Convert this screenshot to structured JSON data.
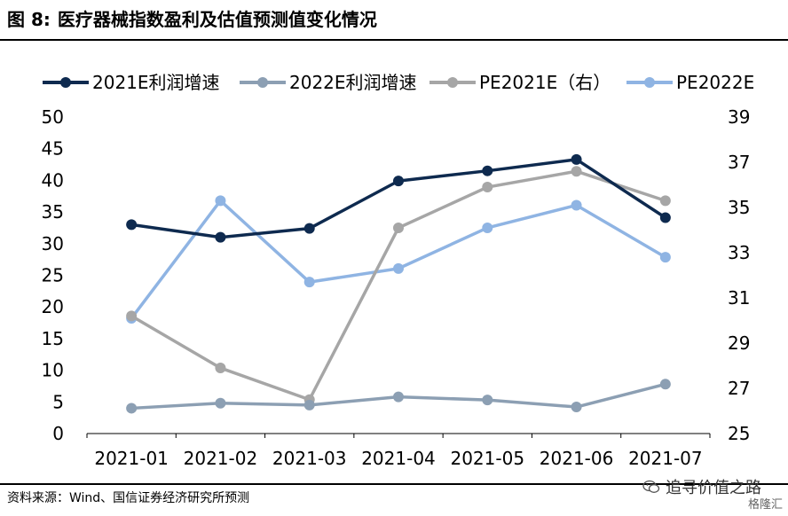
{
  "header": {
    "figure_label": "图 8:",
    "title": "医疗器械指数盈利及估值预测值变化情况"
  },
  "footer": {
    "source": "资料来源：Wind、国信证券经济研究所预测",
    "watermark": "追寻价值之路",
    "watermark_sub": "格隆汇",
    "watermark_icon": "wechat-icon"
  },
  "chart_data": {
    "type": "line",
    "categories": [
      "2021-01",
      "2021-02",
      "2021-03",
      "2021-04",
      "2021-05",
      "2021-06",
      "2021-07"
    ],
    "y_left": {
      "ticks": [
        0,
        5,
        10,
        15,
        20,
        25,
        30,
        35,
        40,
        45,
        50
      ],
      "lim": [
        0,
        50
      ]
    },
    "y_right": {
      "ticks": [
        25,
        27,
        29,
        31,
        33,
        35,
        37,
        39
      ],
      "lim": [
        25,
        39
      ]
    },
    "legend_position": "top",
    "grid": false,
    "series": [
      {
        "name": "2021E利润增速",
        "axis": "left",
        "color": "#0e2a4f",
        "values": [
          33.0,
          31.0,
          32.4,
          39.9,
          41.5,
          43.3,
          34.1
        ]
      },
      {
        "name": "2022E利润增速",
        "axis": "left",
        "color": "#8c9fb3",
        "values": [
          4.0,
          4.8,
          4.5,
          5.8,
          5.3,
          4.2,
          7.8
        ]
      },
      {
        "name": "PE2021E（右）",
        "axis": "right",
        "color": "#a6a6a6",
        "values": [
          30.2,
          27.9,
          26.5,
          34.1,
          35.9,
          36.6,
          35.3
        ]
      },
      {
        "name": "PE2022E",
        "axis": "right",
        "color": "#8fb4e3",
        "values": [
          30.1,
          35.3,
          31.7,
          32.3,
          34.1,
          35.1,
          32.8
        ]
      }
    ]
  }
}
